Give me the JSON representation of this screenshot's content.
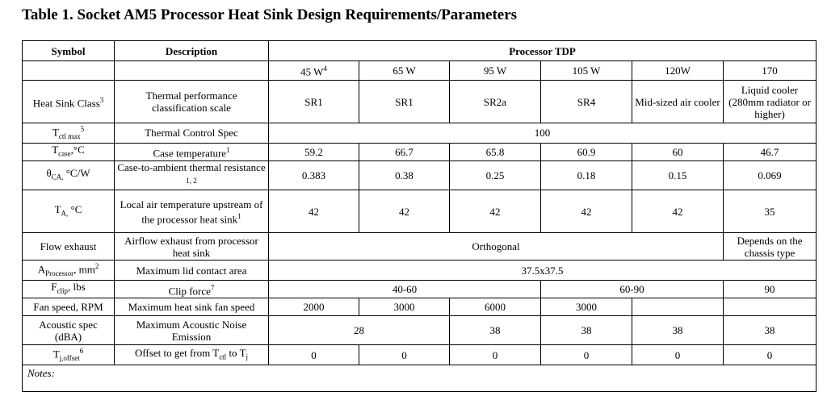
{
  "title": "Table 1. Socket AM5 Processor Heat Sink Design Requirements/Parameters",
  "header": {
    "symbol": "Symbol",
    "description": "Description",
    "processor_tdp": "Processor TDP"
  },
  "tdp": {
    "w45": "45 W",
    "w45_note": "4",
    "w65": "65 W",
    "w95": "95 W",
    "w105": "105 W",
    "w120": "120W",
    "w170": "170"
  },
  "rows": {
    "hsc": {
      "symbol": "Heat Sink Class",
      "symbol_note": "3",
      "desc": "Thermal performance classification scale",
      "v45": "SR1",
      "v65": "SR1",
      "v95": "SR2a",
      "v105": "SR4",
      "v120": "Mid-sized air cooler",
      "v170": "Liquid cooler (280mm radiator or higher)"
    },
    "tctl": {
      "symbol": "T",
      "symbol_sub": "ctl max",
      "symbol_note": "5",
      "desc": "Thermal Control Spec",
      "value": "100"
    },
    "tcase": {
      "symbol": "T",
      "symbol_sub": "case",
      "symbol_unit": ",°C",
      "desc": "Case temperature",
      "desc_note": "1",
      "v45": "59.2",
      "v65": "66.7",
      "v95": "65.8",
      "v105": "60.9",
      "v120": "60",
      "v170": "46.7"
    },
    "theta": {
      "symbol": "θ",
      "symbol_sub": "CA,",
      "symbol_unit": " °C/W",
      "desc": "Case-to-ambient thermal resistance",
      "desc_note": " 1, 2",
      "v45": "0.383",
      "v65": "0.38",
      "v95": "0.25",
      "v105": "0.18",
      "v120": "0.15",
      "v170": "0.069"
    },
    "ta": {
      "symbol": "T",
      "symbol_sub": "A,",
      "symbol_unit": " °C",
      "desc": "Local air temperature upstream of the processor heat sink",
      "desc_note": "1",
      "v45": "42",
      "v65": "42",
      "v95": "42",
      "v105": "42",
      "v120": "42",
      "v170": "35"
    },
    "flow": {
      "symbol": "Flow exhaust",
      "desc": "Airflow exhaust from processor heat sink",
      "value": "Orthogonal",
      "v170": "Depends on the chassis type"
    },
    "aproc": {
      "symbol": "A",
      "symbol_sub": "Processor",
      "symbol_unit": ", mm",
      "symbol_sup": "2",
      "desc": "Maximum lid contact area",
      "value": "37.5x37.5"
    },
    "fclip": {
      "symbol": "F",
      "symbol_sub": "clip",
      "symbol_unit": ", lbs",
      "desc": "Clip force",
      "desc_note": "7",
      "v_low": "40-60",
      "v_mid": "60-90",
      "v170": "90"
    },
    "fan": {
      "symbol": "Fan speed, RPM",
      "desc": "Maximum heat sink fan speed",
      "v45": "2000",
      "v65": "3000",
      "v95": "6000",
      "v105": "3000",
      "v120": "",
      "v170": ""
    },
    "noise": {
      "symbol": "Acoustic spec (dBA)",
      "desc": "Maximum Acoustic Noise Emission",
      "v_low": "28",
      "v95": "38",
      "v105": "38",
      "v120": "38",
      "v170": "38"
    },
    "tj": {
      "symbol": "T",
      "symbol_sub": "j,offset",
      "symbol_note": "6",
      "desc_pre": "Offset to get from T",
      "desc_sub1": "ctl",
      "desc_mid": " to T",
      "desc_sub2": "j",
      "v45": "0",
      "v65": "0",
      "v95": "0",
      "v105": "0",
      "v120": "0",
      "v170": "0"
    }
  },
  "notes_label": "Notes:"
}
